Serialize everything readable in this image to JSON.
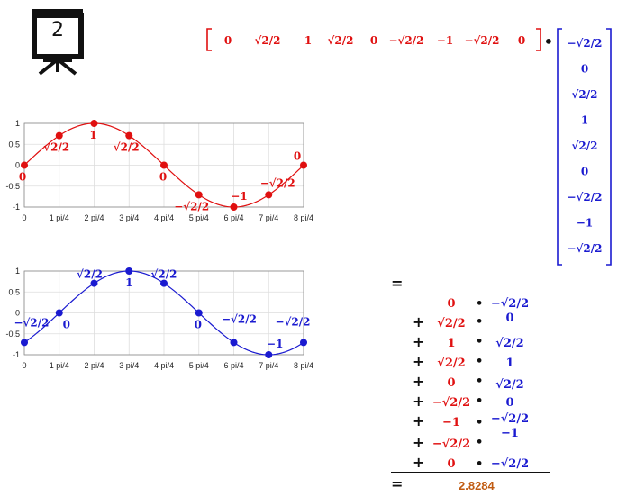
{
  "slide": {
    "number": "2"
  },
  "row_vector": [
    "0",
    "√2/2",
    "1",
    "√2/2",
    "0",
    "−√2/2",
    "−1",
    "−√2/2",
    "0"
  ],
  "column_vector": [
    "−√2/2",
    "0",
    "√2/2",
    "1",
    "√2/2",
    "0",
    "−√2/2",
    "−1",
    "−√2/2"
  ],
  "dot_operator": "•",
  "plus": "+",
  "equals": "=",
  "result": "2.8284",
  "products": [
    {
      "a": "0",
      "b": "−√2/2"
    },
    {
      "a": "√2/2",
      "b": "0"
    },
    {
      "a": "1",
      "b": "√2/2"
    },
    {
      "a": "√2/2",
      "b": "1"
    },
    {
      "a": "0",
      "b": "√2/2"
    },
    {
      "a": "−√2/2",
      "b": "0"
    },
    {
      "a": "−1",
      "b": "−√2/2"
    },
    {
      "a": "−√2/2",
      "b": "−1"
    },
    {
      "a": "0",
      "b": "−√2/2"
    }
  ],
  "colors": {
    "red": "#e01010",
    "blue": "#1a1ad0",
    "result": "#c05a10"
  },
  "chart_data": [
    {
      "type": "line",
      "series": [
        {
          "color": "#e01010",
          "x": [
            0,
            1,
            2,
            3,
            4,
            5,
            6,
            7,
            8
          ],
          "values": [
            0,
            0.7071,
            1,
            0.7071,
            0,
            -0.7071,
            -1,
            -0.7071,
            0
          ]
        }
      ],
      "point_labels": [
        "0",
        "√2/2",
        "1",
        "√2/2",
        "0",
        "−√2/2",
        "−1",
        "−√2/2",
        "0"
      ],
      "xticks": [
        "0",
        "1 pi/4",
        "2 pi/4",
        "3 pi/4",
        "4 pi/4",
        "5 pi/4",
        "6 pi/4",
        "7 pi/4",
        "8 pi/4"
      ],
      "yticks": [
        "1",
        "0.5",
        "0",
        "-0.5",
        "-1"
      ],
      "xlim": [
        0,
        8
      ],
      "ylim": [
        -1,
        1
      ],
      "grid": true
    },
    {
      "type": "line",
      "series": [
        {
          "color": "#1a1ad0",
          "x": [
            0,
            1,
            2,
            3,
            4,
            5,
            6,
            7,
            8
          ],
          "values": [
            -0.7071,
            0,
            0.7071,
            1,
            0.7071,
            0,
            -0.7071,
            -1,
            -0.7071
          ]
        }
      ],
      "point_labels": [
        "−√2/2",
        "0",
        "√2/2",
        "1",
        "√2/2",
        "0",
        "−√2/2",
        "−1",
        "−√2/2"
      ],
      "xticks": [
        "0",
        "1 pi/4",
        "2 pi/4",
        "3 pi/4",
        "4 pi/4",
        "5 pi/4",
        "6 pi/4",
        "7 pi/4",
        "8 pi/4"
      ],
      "yticks": [
        "1",
        "0.5",
        "0",
        "-0.5",
        "-1"
      ],
      "xlim": [
        0,
        8
      ],
      "ylim": [
        -1,
        1
      ],
      "grid": true
    }
  ]
}
